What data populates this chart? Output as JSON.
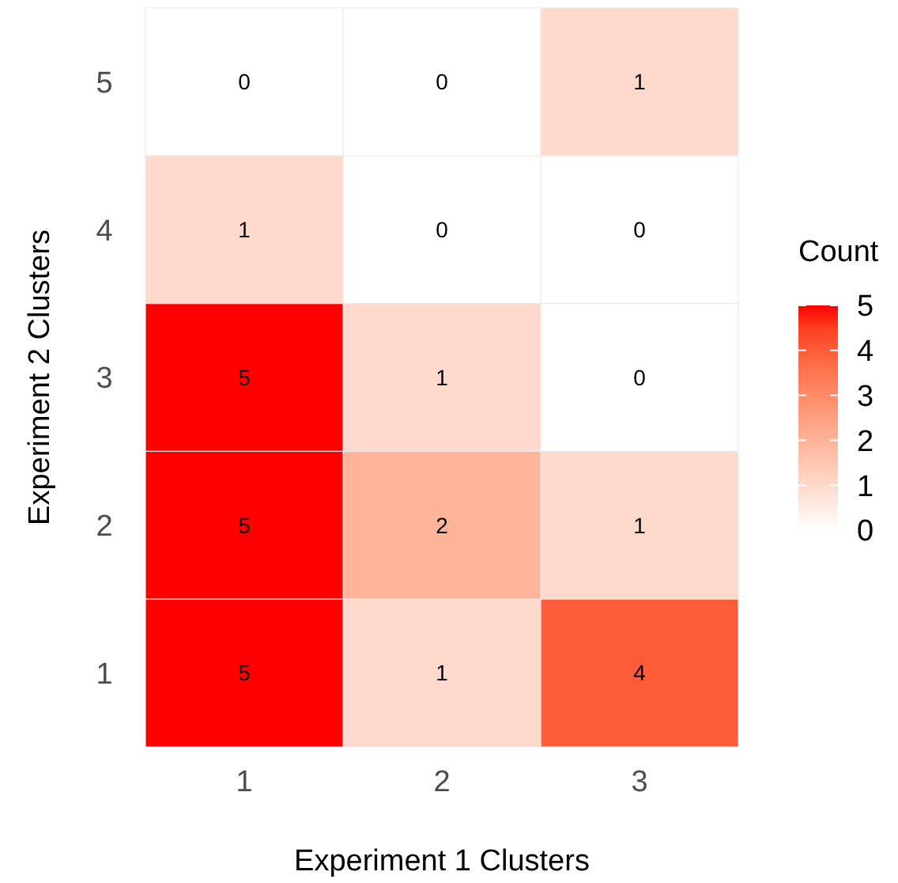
{
  "chart_data": {
    "type": "heatmap",
    "xlabel": "Experiment 1 Clusters",
    "ylabel": "Experiment 2 Clusters",
    "legend_title": "Count",
    "categories": [
      "1",
      "2",
      "3"
    ],
    "y_categories": [
      "5",
      "4",
      "3",
      "2",
      "1"
    ],
    "cells": [
      [
        0,
        0,
        1
      ],
      [
        1,
        0,
        0
      ],
      [
        5,
        1,
        0
      ],
      [
        5,
        2,
        1
      ],
      [
        5,
        1,
        4
      ]
    ],
    "data_labels": true,
    "clim": [
      0,
      5
    ],
    "cticks": [
      0,
      1,
      2,
      3,
      4,
      5
    ]
  }
}
